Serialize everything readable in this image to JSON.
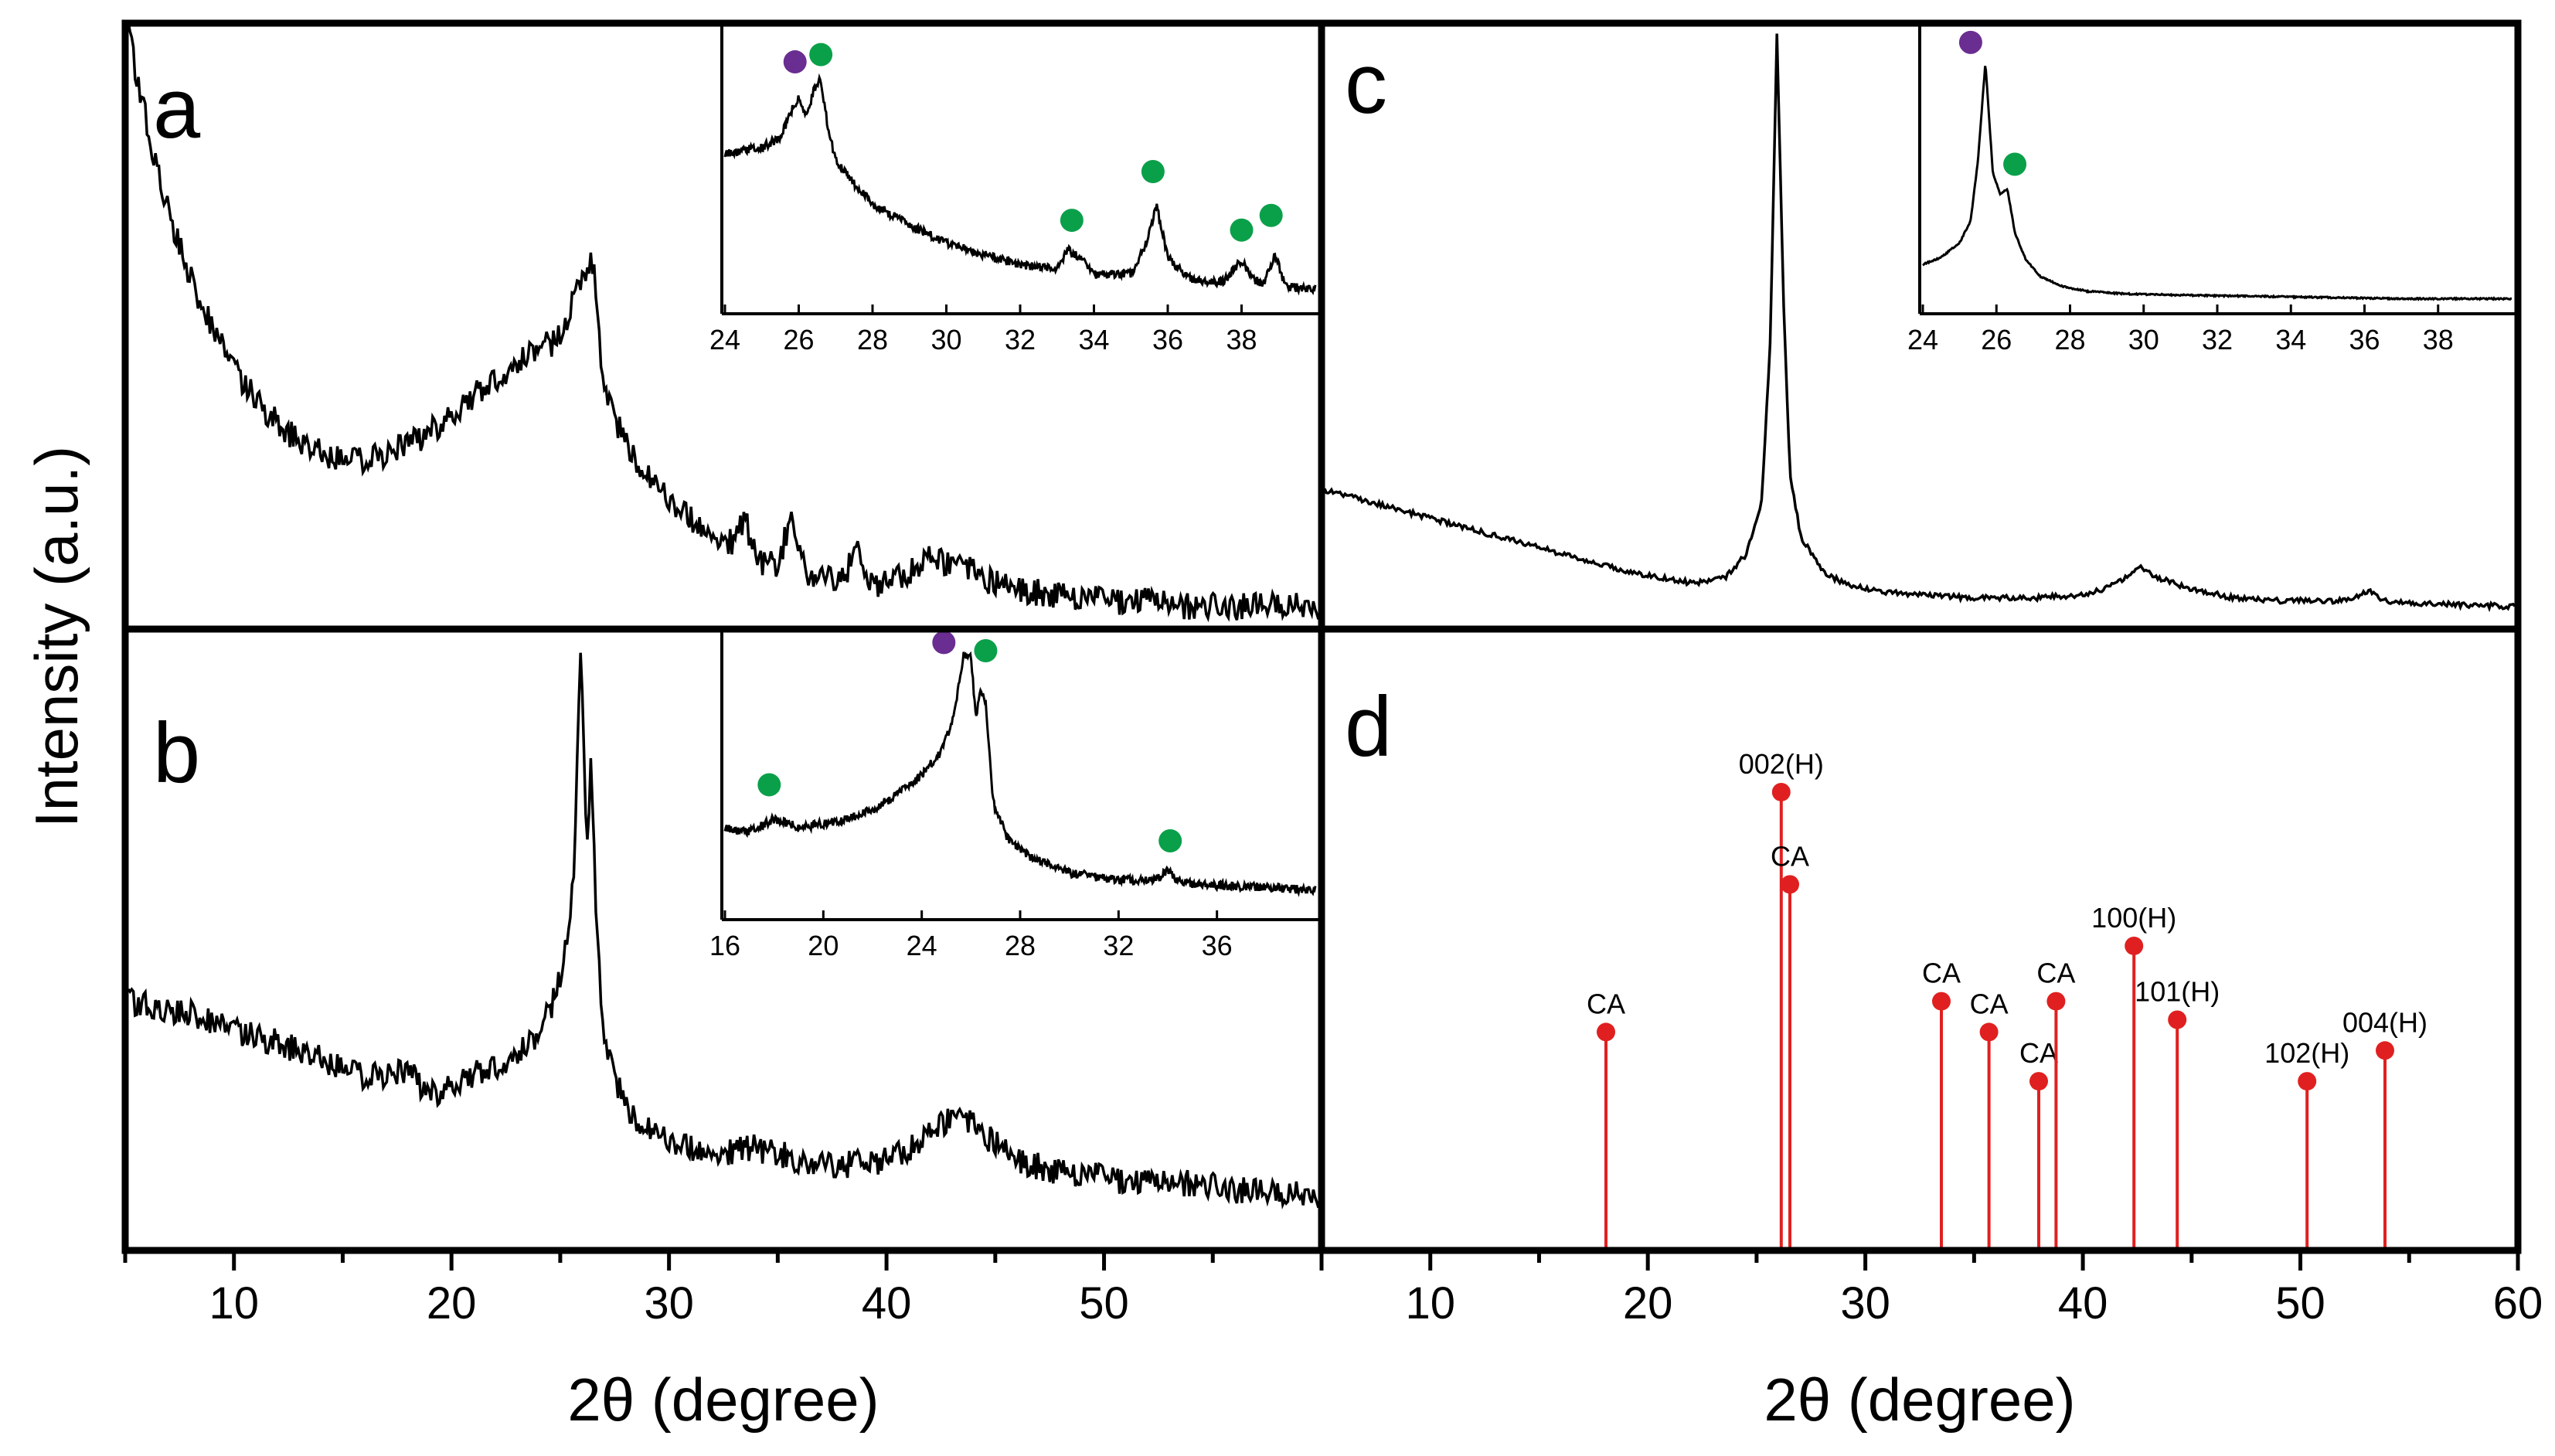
{
  "figure": {
    "ylabel": "Intensity (a.u.)",
    "xlabel_left": "2θ (degree)",
    "xlabel_right": "2θ (degree)",
    "colors": {
      "line": "#000000",
      "stem": "#e02020",
      "purple_marker": "#6a2d91",
      "green_marker": "#0aa04a",
      "frame": "#000000"
    }
  },
  "chart_data": [
    {
      "panel": "a",
      "type": "line",
      "xlim": [
        5,
        60
      ],
      "x_ticks": [
        10,
        20,
        30,
        40,
        50
      ],
      "series": [
        {
          "x": [
            5,
            6,
            7,
            8,
            9,
            10,
            11,
            12,
            13,
            14,
            15,
            16,
            17,
            18,
            19,
            20,
            21,
            22,
            23,
            24,
            25,
            25.6,
            26.1,
            26.5,
            27,
            28,
            29,
            30,
            31,
            32,
            33,
            33.5,
            34,
            35,
            35.7,
            36.3,
            37,
            38,
            38.7,
            39.3,
            40,
            41,
            42,
            43,
            44,
            45,
            46,
            48,
            50,
            52,
            54,
            56,
            58,
            60
          ],
          "y": [
            1.0,
            0.82,
            0.68,
            0.57,
            0.49,
            0.42,
            0.37,
            0.33,
            0.3,
            0.28,
            0.27,
            0.27,
            0.28,
            0.3,
            0.32,
            0.35,
            0.38,
            0.41,
            0.44,
            0.46,
            0.48,
            0.56,
            0.6,
            0.61,
            0.38,
            0.3,
            0.24,
            0.2,
            0.17,
            0.14,
            0.13,
            0.17,
            0.1,
            0.09,
            0.18,
            0.08,
            0.07,
            0.07,
            0.11,
            0.06,
            0.06,
            0.08,
            0.1,
            0.09,
            0.08,
            0.06,
            0.05,
            0.04,
            0.03,
            0.03,
            0.02,
            0.02,
            0.02,
            0.02
          ]
        }
      ],
      "inset": {
        "xlim": [
          24,
          40
        ],
        "x_ticks": [
          24,
          26,
          28,
          30,
          32,
          34,
          36,
          38
        ],
        "x": [
          24,
          24.5,
          25,
          25.5,
          25.8,
          26.0,
          26.2,
          26.4,
          26.6,
          26.8,
          27,
          27.5,
          28,
          29,
          30,
          31,
          32,
          33,
          33.3,
          33.6,
          34,
          35,
          35.4,
          35.7,
          36,
          36.5,
          37,
          37.5,
          38.0,
          38.3,
          38.6,
          38.9,
          39.2,
          40
        ],
        "y": [
          0.62,
          0.64,
          0.65,
          0.69,
          0.8,
          0.86,
          0.78,
          0.88,
          0.93,
          0.72,
          0.6,
          0.5,
          0.42,
          0.33,
          0.26,
          0.21,
          0.17,
          0.15,
          0.23,
          0.2,
          0.13,
          0.13,
          0.25,
          0.41,
          0.2,
          0.12,
          0.1,
          0.1,
          0.19,
          0.11,
          0.09,
          0.21,
          0.08,
          0.07
        ],
        "markers": [
          {
            "x": 25.9,
            "y": 0.97,
            "phase": "purple"
          },
          {
            "x": 26.6,
            "y": 1.0,
            "phase": "green"
          },
          {
            "x": 33.4,
            "y": 0.32,
            "phase": "green"
          },
          {
            "x": 35.6,
            "y": 0.52,
            "phase": "green"
          },
          {
            "x": 38.0,
            "y": 0.28,
            "phase": "green"
          },
          {
            "x": 38.8,
            "y": 0.34,
            "phase": "green"
          }
        ]
      }
    },
    {
      "panel": "b",
      "type": "line",
      "xlim": [
        5,
        60
      ],
      "x_ticks": [
        10,
        20,
        30,
        40,
        50
      ],
      "series": [
        {
          "x": [
            5,
            8,
            10,
            12,
            14,
            16,
            18,
            19,
            20,
            22,
            24,
            25,
            25.6,
            25.9,
            26.2,
            26.4,
            26.6,
            27,
            28,
            29,
            30,
            32,
            34,
            36,
            38,
            40,
            42,
            43,
            44,
            45,
            46,
            48,
            50,
            52,
            54,
            56,
            58,
            60
          ],
          "y": [
            0.38,
            0.36,
            0.33,
            0.31,
            0.28,
            0.25,
            0.26,
            0.22,
            0.24,
            0.27,
            0.32,
            0.42,
            0.6,
            1.0,
            0.65,
            0.8,
            0.55,
            0.3,
            0.2,
            0.16,
            0.14,
            0.12,
            0.13,
            0.11,
            0.1,
            0.11,
            0.15,
            0.18,
            0.17,
            0.14,
            0.11,
            0.09,
            0.08,
            0.07,
            0.07,
            0.06,
            0.05,
            0.05
          ]
        }
      ],
      "inset": {
        "xlim": [
          16,
          40
        ],
        "x_ticks": [
          16,
          20,
          24,
          28,
          32,
          36
        ],
        "x": [
          16,
          17,
          18,
          19,
          20,
          21,
          22,
          23,
          24,
          24.8,
          25.3,
          25.7,
          26.0,
          26.2,
          26.4,
          26.6,
          26.9,
          27.5,
          28.5,
          30,
          32,
          33.5,
          34,
          34.5,
          36,
          38,
          40
        ],
        "y": [
          0.34,
          0.33,
          0.38,
          0.35,
          0.36,
          0.38,
          0.42,
          0.48,
          0.56,
          0.66,
          0.8,
          1.05,
          1.05,
          0.8,
          0.92,
          0.85,
          0.45,
          0.3,
          0.22,
          0.16,
          0.13,
          0.13,
          0.17,
          0.12,
          0.11,
          0.1,
          0.09
        ],
        "markers": [
          {
            "x": 17.8,
            "y": 0.49,
            "phase": "green"
          },
          {
            "x": 24.9,
            "y": 1.1,
            "phase": "purple"
          },
          {
            "x": 26.6,
            "y": 1.04,
            "phase": "green"
          },
          {
            "x": 34.1,
            "y": 0.26,
            "phase": "green"
          }
        ]
      }
    },
    {
      "panel": "c",
      "type": "line",
      "xlim": [
        5,
        60
      ],
      "series": [
        {
          "x": [
            5,
            7,
            10,
            13,
            16,
            19,
            22,
            23.5,
            24.5,
            25.2,
            25.6,
            25.9,
            26.2,
            26.5,
            27,
            28,
            29,
            30,
            32,
            35,
            38,
            40,
            41,
            42,
            42.6,
            43.5,
            45,
            47,
            49,
            51,
            52,
            53.3,
            54,
            56,
            60
          ],
          "y": [
            0.22,
            0.2,
            0.17,
            0.14,
            0.11,
            0.08,
            0.06,
            0.07,
            0.11,
            0.2,
            0.48,
            1.0,
            0.55,
            0.25,
            0.14,
            0.08,
            0.06,
            0.05,
            0.04,
            0.035,
            0.035,
            0.04,
            0.05,
            0.07,
            0.09,
            0.07,
            0.05,
            0.035,
            0.03,
            0.03,
            0.03,
            0.045,
            0.03,
            0.025,
            0.02
          ]
        }
      ],
      "inset": {
        "xlim": [
          24,
          40
        ],
        "x_ticks": [
          24,
          26,
          28,
          30,
          32,
          34,
          36,
          38
        ],
        "x": [
          24,
          24.5,
          25,
          25.3,
          25.5,
          25.7,
          25.9,
          26.1,
          26.3,
          26.5,
          26.8,
          27.2,
          27.8,
          28.5,
          29.5,
          31,
          33,
          35,
          37,
          40
        ],
        "y": [
          0.17,
          0.2,
          0.26,
          0.35,
          0.6,
          1.0,
          0.55,
          0.46,
          0.48,
          0.3,
          0.19,
          0.12,
          0.08,
          0.06,
          0.05,
          0.045,
          0.04,
          0.035,
          0.03,
          0.03
        ],
        "markers": [
          {
            "x": 25.3,
            "y": 1.05,
            "phase": "purple"
          },
          {
            "x": 26.5,
            "y": 0.55,
            "phase": "green"
          }
        ]
      }
    },
    {
      "panel": "d",
      "type": "bar",
      "xlim": [
        5,
        60
      ],
      "ylim": [
        0,
        1
      ],
      "x_ticks": [
        10,
        20,
        30,
        40,
        50,
        60
      ],
      "stems": [
        {
          "x": 18.0,
          "y": 0.35,
          "label": "CA"
        },
        {
          "x": 26.1,
          "y": 0.74,
          "label": "002(H)"
        },
        {
          "x": 26.5,
          "y": 0.59,
          "label": "CA"
        },
        {
          "x": 33.5,
          "y": 0.4,
          "label": "CA"
        },
        {
          "x": 35.7,
          "y": 0.35,
          "label": "CA"
        },
        {
          "x": 38.0,
          "y": 0.27,
          "label": "CA"
        },
        {
          "x": 38.8,
          "y": 0.4,
          "label": "CA"
        },
        {
          "x": 42.4,
          "y": 0.49,
          "label": "100(H)"
        },
        {
          "x": 44.4,
          "y": 0.37,
          "label": "101(H)"
        },
        {
          "x": 50.4,
          "y": 0.27,
          "label": "102(H)"
        },
        {
          "x": 54.0,
          "y": 0.32,
          "label": "004(H)"
        }
      ]
    }
  ]
}
